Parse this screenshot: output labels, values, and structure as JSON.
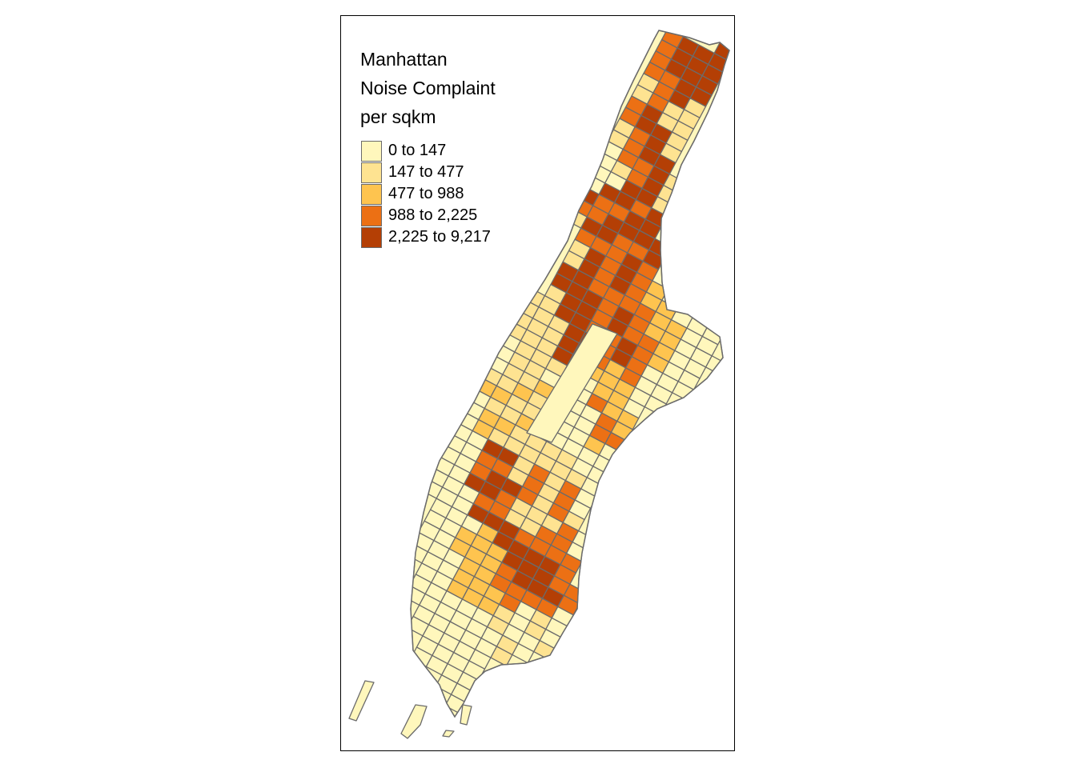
{
  "legend": {
    "title_lines": [
      "Manhattan",
      "Noise Complaint",
      "per sqkm"
    ],
    "classes": [
      {
        "label": "0 to 147",
        "color": "#FFF7BC"
      },
      {
        "label": "147 to 477",
        "color": "#FEE391"
      },
      {
        "label": "477 to 988",
        "color": "#FEC44F"
      },
      {
        "label": "988 to 2,225",
        "color": "#EC7014"
      },
      {
        "label": "2,225 to 9,217",
        "color": "#B43F05"
      }
    ]
  },
  "colors": {
    "border": "#6b6b6b",
    "frame": "#000000",
    "background": "#ffffff"
  }
}
